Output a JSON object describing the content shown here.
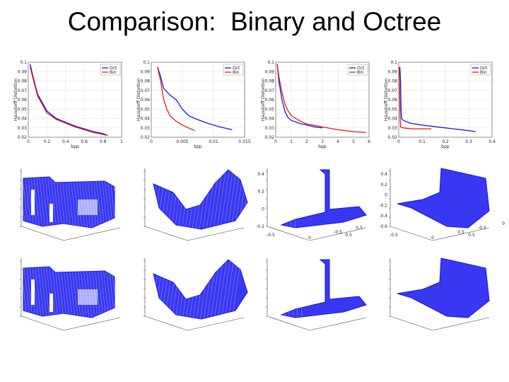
{
  "title": "Comparison:  Binary and Octree",
  "colors": {
    "oct": "#1a1ad6",
    "bin": "#e01a1a",
    "mesh": "#1515f0",
    "grid": "#e2e2e2"
  },
  "chart_data": [
    {
      "type": "line",
      "ylabel": "Hausdorff Distortion",
      "xlabel": "bpp",
      "xlim": [
        0,
        1
      ],
      "ylim": [
        0.02,
        0.1
      ],
      "xticks": [
        "0",
        "0.2",
        "0.4",
        "0.6",
        "0.8",
        "1"
      ],
      "yticks": [
        "0.02",
        "0.03",
        "0.04",
        "0.05",
        "0.06",
        "0.07",
        "0.08",
        "0.09",
        "0.1"
      ],
      "legend": [
        "Oct",
        "Bin"
      ],
      "legend_position": "top-right",
      "series": [
        {
          "name": "Oct",
          "x": [
            0.02,
            0.05,
            0.1,
            0.2,
            0.3,
            0.4,
            0.5,
            0.6,
            0.7,
            0.8,
            0.85
          ],
          "y": [
            0.098,
            0.085,
            0.066,
            0.048,
            0.04,
            0.036,
            0.032,
            0.029,
            0.026,
            0.024,
            0.022
          ]
        },
        {
          "name": "Bin",
          "x": [
            0.02,
            0.05,
            0.1,
            0.2,
            0.3,
            0.4,
            0.5,
            0.6,
            0.7,
            0.8,
            0.85
          ],
          "y": [
            0.095,
            0.083,
            0.064,
            0.046,
            0.039,
            0.035,
            0.031,
            0.028,
            0.025,
            0.023,
            0.022
          ]
        }
      ]
    },
    {
      "type": "line",
      "ylabel": "Hausdorff Distortion",
      "xlabel": "bpp",
      "xlim": [
        0,
        0.015
      ],
      "ylim": [
        0.02,
        0.1
      ],
      "xticks": [
        "0",
        "0.005",
        "0.01",
        "0.015"
      ],
      "yticks": [
        "0.02",
        "0.03",
        "0.04",
        "0.05",
        "0.06",
        "0.07",
        "0.08",
        "0.09",
        "0.1"
      ],
      "legend": [
        "Oct",
        "Bin"
      ],
      "legend_position": "top-right",
      "series": [
        {
          "name": "Oct",
          "x": [
            0.001,
            0.0015,
            0.002,
            0.003,
            0.004,
            0.005,
            0.006,
            0.007,
            0.009,
            0.011,
            0.013
          ],
          "y": [
            0.095,
            0.085,
            0.072,
            0.065,
            0.06,
            0.05,
            0.043,
            0.04,
            0.035,
            0.031,
            0.028
          ]
        },
        {
          "name": "Bin",
          "x": [
            0.001,
            0.0015,
            0.002,
            0.0025,
            0.003,
            0.004,
            0.005,
            0.006,
            0.007
          ],
          "y": [
            0.095,
            0.08,
            0.06,
            0.05,
            0.043,
            0.037,
            0.033,
            0.03,
            0.027
          ]
        }
      ]
    },
    {
      "type": "line",
      "ylabel": "Hausdorff Distortion",
      "xlabel": "bpp",
      "xlim": [
        0,
        6
      ],
      "ylim": [
        0.02,
        0.1
      ],
      "xticks": [
        "0",
        "1",
        "2",
        "3",
        "4",
        "5",
        "6"
      ],
      "yticks": [
        "0.02",
        "0.03",
        "0.04",
        "0.05",
        "0.06",
        "0.07",
        "0.08",
        "0.09",
        "0.1"
      ],
      "legend": [
        "Oct",
        "Bin"
      ],
      "legend_position": "top-right",
      "series": [
        {
          "name": "Oct",
          "x": [
            0.1,
            0.2,
            0.4,
            0.6,
            0.8,
            1.0,
            1.5,
            2.0,
            2.5,
            3.0
          ],
          "y": [
            0.098,
            0.08,
            0.06,
            0.047,
            0.041,
            0.038,
            0.035,
            0.033,
            0.031,
            0.03
          ]
        },
        {
          "name": "Bin",
          "x": [
            0.1,
            0.2,
            0.4,
            0.6,
            0.8,
            1.0,
            1.5,
            2.0,
            3.0,
            4.0,
            5.0,
            5.8
          ],
          "y": [
            0.098,
            0.085,
            0.068,
            0.055,
            0.048,
            0.043,
            0.038,
            0.034,
            0.031,
            0.028,
            0.026,
            0.025
          ]
        }
      ]
    },
    {
      "type": "line",
      "ylabel": "Hausdorff Distortion",
      "xlabel": "bpp",
      "xlim": [
        0,
        0.4
      ],
      "ylim": [
        0.02,
        0.1
      ],
      "xticks": [
        "0",
        "0.1",
        "0.2",
        "0.3",
        "0.4"
      ],
      "yticks": [
        "0.02",
        "0.03",
        "0.04",
        "0.05",
        "0.06",
        "0.07",
        "0.08",
        "0.09",
        "0.1"
      ],
      "legend": [
        "Oct",
        "Bin"
      ],
      "legend_position": "top-right",
      "series": [
        {
          "name": "Oct",
          "x": [
            0.005,
            0.008,
            0.01,
            0.012,
            0.015,
            0.02,
            0.05,
            0.1,
            0.2,
            0.3,
            0.33
          ],
          "y": [
            0.095,
            0.08,
            0.05,
            0.04,
            0.039,
            0.038,
            0.035,
            0.033,
            0.03,
            0.027,
            0.026
          ]
        },
        {
          "name": "Bin",
          "x": [
            0.002,
            0.004,
            0.006,
            0.008,
            0.02,
            0.06,
            0.1,
            0.14
          ],
          "y": [
            0.095,
            0.07,
            0.04,
            0.031,
            0.03,
            0.029,
            0.029,
            0.029
          ]
        }
      ]
    }
  ],
  "surface_panels": [
    {
      "row": 1,
      "col": 1,
      "shape": "box"
    },
    {
      "row": 1,
      "col": 2,
      "shape": "valley"
    },
    {
      "row": 1,
      "col": 3,
      "shape": "spike",
      "yticks": [
        "0.4",
        "0.2",
        "0",
        "-0.2"
      ],
      "xticks": [
        "-0.5",
        "0",
        "0.5"
      ],
      "zticks": [
        "-0.5",
        "0.5"
      ]
    },
    {
      "row": 1,
      "col": 4,
      "shape": "curve",
      "yticks": [
        "0.4",
        "0.2",
        "0",
        "-0.2",
        "-0.4",
        "-0.6"
      ],
      "xticks": [
        "-0.5",
        "0",
        "0.5"
      ],
      "zticks": [
        "0.5",
        "-0.5",
        "0"
      ]
    },
    {
      "row": 2,
      "col": 1,
      "shape": "box"
    },
    {
      "row": 2,
      "col": 2,
      "shape": "valley"
    },
    {
      "row": 2,
      "col": 3,
      "shape": "spike"
    },
    {
      "row": 2,
      "col": 4,
      "shape": "curve"
    }
  ]
}
